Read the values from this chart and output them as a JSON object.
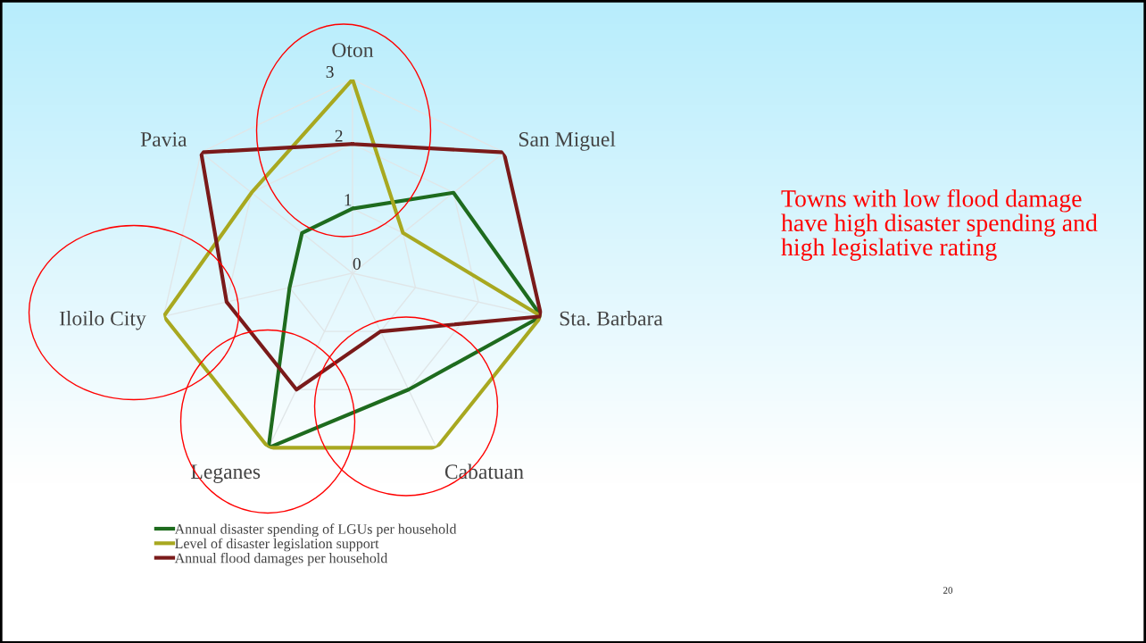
{
  "chart_data": {
    "type": "radar",
    "categories": [
      "Oton",
      "San Miguel",
      "Sta. Barbara",
      "Cabatuan",
      "Leganes",
      "Iloilo City",
      "Pavia"
    ],
    "series": [
      {
        "name": "Annual disaster spending of LGUs per household",
        "color": "#1e6b1e",
        "values": [
          1,
          2,
          3,
          2,
          3,
          1,
          1
        ]
      },
      {
        "name": "Level of disaster legislation support",
        "color": "#a8a820",
        "values": [
          3,
          1,
          3,
          3,
          3,
          3,
          2
        ]
      },
      {
        "name": "Annual flood damages per household",
        "color": "#7a1a1a",
        "values": [
          2,
          3,
          3,
          1,
          2,
          2,
          3
        ]
      }
    ],
    "ylim": [
      0,
      3
    ],
    "yticks": [
      0,
      1,
      2,
      3
    ],
    "grid": true,
    "legend": "bottom left",
    "marker": "none",
    "line_style": "solid",
    "annotations": [
      "Towns with low flood damage have high disaster spending and high legislative rating",
      "20"
    ]
  }
}
